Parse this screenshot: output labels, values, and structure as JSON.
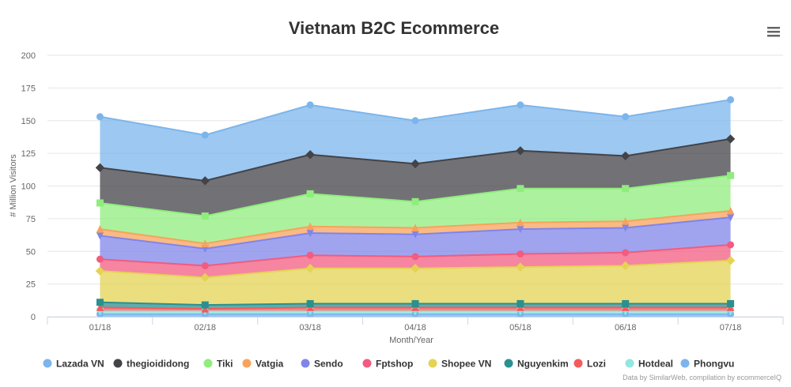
{
  "chart_data": {
    "type": "area",
    "stacked": true,
    "title": "Vietnam B2C Ecommerce",
    "xlabel": "Month/Year",
    "ylabel": "# Million Visitors",
    "categories": [
      "01/18",
      "02/18",
      "03/18",
      "04/18",
      "05/18",
      "06/18",
      "07/18"
    ],
    "ylim": [
      0,
      200
    ],
    "yticks": [
      0,
      25,
      50,
      75,
      100,
      125,
      150,
      175,
      200
    ],
    "grid": true,
    "legend_position": "bottom",
    "series": [
      {
        "name": "Lazada VN",
        "color": "#7cb5ec",
        "marker": "circle",
        "values": [
          39,
          35,
          38,
          33,
          35,
          30,
          30
        ]
      },
      {
        "name": "thegioididong",
        "color": "#434348",
        "marker": "diamond",
        "values": [
          27,
          27,
          30,
          29,
          29,
          25,
          28
        ]
      },
      {
        "name": "Tiki",
        "color": "#90ed7d",
        "marker": "square",
        "values": [
          20,
          21,
          25,
          20,
          26,
          25,
          27
        ]
      },
      {
        "name": "Vatgia",
        "color": "#f7a35c",
        "marker": "triangle",
        "values": [
          5,
          4,
          5,
          5,
          5,
          5,
          5
        ]
      },
      {
        "name": "Sendo",
        "color": "#8085e9",
        "marker": "triangle-down",
        "values": [
          18,
          13,
          17,
          17,
          19,
          19,
          21
        ]
      },
      {
        "name": "Fptshop",
        "color": "#f15c80",
        "marker": "circle",
        "values": [
          9,
          9,
          10,
          9,
          10,
          10,
          12
        ]
      },
      {
        "name": "Shopee VN",
        "color": "#e4d354",
        "marker": "diamond",
        "values": [
          24,
          21,
          27,
          27,
          28,
          29,
          33
        ]
      },
      {
        "name": "Nguyenkim",
        "color": "#2b908f",
        "marker": "square",
        "values": [
          4,
          3,
          3,
          3,
          3,
          3,
          3
        ]
      },
      {
        "name": "Lozi",
        "color": "#f45b5b",
        "marker": "triangle",
        "values": [
          3,
          2,
          3,
          3,
          3,
          3,
          3
        ]
      },
      {
        "name": "Hotdeal",
        "color": "#91e8e1",
        "marker": "triangle-down",
        "values": [
          2,
          2,
          2,
          2,
          2,
          2,
          2
        ]
      },
      {
        "name": "Phongvu",
        "color": "#7cb5ec",
        "marker": "circle",
        "values": [
          2,
          2,
          2,
          2,
          2,
          2,
          2
        ]
      }
    ]
  },
  "menu_icon": "hamburger-menu-icon",
  "credits": "Data by SimilarWeb, compilation by ecommerceIQ"
}
